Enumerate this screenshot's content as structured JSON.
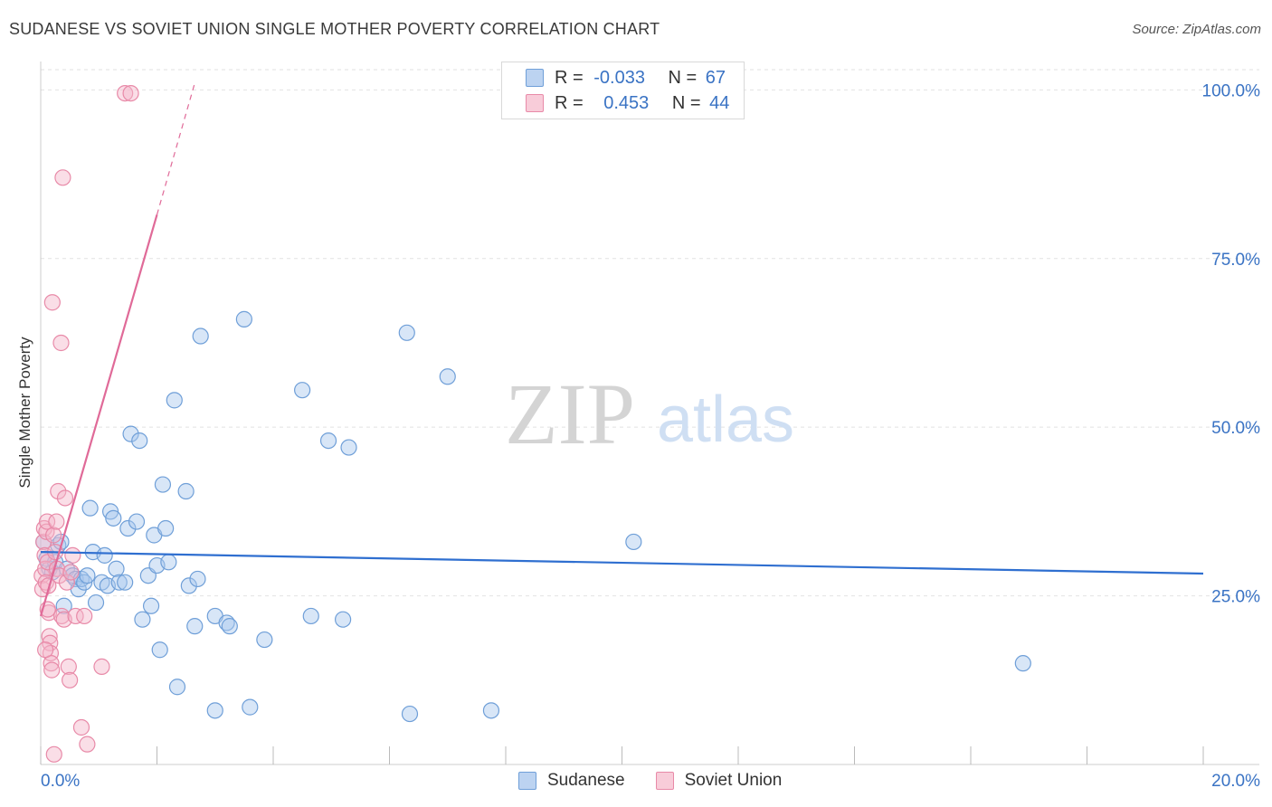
{
  "title": "SUDANESE VS SOVIET UNION SINGLE MOTHER POVERTY CORRELATION CHART",
  "source": "Source: ZipAtlas.com",
  "watermark": {
    "zip": "ZIP",
    "atlas": "atlas"
  },
  "legend": {
    "rows": [
      {
        "r_label": "R =",
        "r_value": "-0.033",
        "n_label": "N =",
        "n_value": "67"
      },
      {
        "r_label": "R =",
        "r_value": "0.453",
        "n_label": "N =",
        "n_value": "44"
      }
    ]
  },
  "bottom_legend": {
    "sudanese": "Sudanese",
    "soviet": "Soviet Union"
  },
  "colors": {
    "blue_fill": "#a9c8ee",
    "blue_stroke": "#6f9fd8",
    "blue_line": "#2f6fd0",
    "pink_fill": "#f4b6c9",
    "pink_stroke": "#e88aa8",
    "pink_line": "#e06a98",
    "axis_text": "#3a73c4"
  },
  "chart_data": {
    "type": "scatter",
    "title": "SUDANESE VS SOVIET UNION SINGLE MOTHER POVERTY CORRELATION CHART",
    "xlabel": "",
    "ylabel": "Single Mother Poverty",
    "xlim": [
      0,
      20
    ],
    "ylim": [
      0,
      103
    ],
    "x_tick_labels": [
      "0.0%",
      "20.0%"
    ],
    "y_ticks": [
      25,
      50,
      75,
      100
    ],
    "y_tick_labels": [
      "25.0%",
      "50.0%",
      "75.0%",
      "100.0%"
    ],
    "grid": true,
    "legend_position": "top-center",
    "series": [
      {
        "name": "Sudanese",
        "r": -0.033,
        "n": 67,
        "trend": {
          "x0": 0,
          "y0": 31.5,
          "x1": 20,
          "y1": 28.3
        },
        "points": [
          [
            0.05,
            33
          ],
          [
            0.1,
            30.5
          ],
          [
            0.15,
            29
          ],
          [
            0.2,
            28.5
          ],
          [
            0.25,
            30
          ],
          [
            0.3,
            32.5
          ],
          [
            0.35,
            33
          ],
          [
            0.4,
            23.5
          ],
          [
            0.45,
            29
          ],
          [
            0.55,
            28
          ],
          [
            0.6,
            27.5
          ],
          [
            0.65,
            26
          ],
          [
            0.7,
            27.5
          ],
          [
            0.75,
            27
          ],
          [
            0.8,
            28
          ],
          [
            0.85,
            38
          ],
          [
            0.9,
            31.5
          ],
          [
            0.95,
            24
          ],
          [
            1.05,
            27
          ],
          [
            1.1,
            31
          ],
          [
            1.15,
            26.5
          ],
          [
            1.2,
            37.5
          ],
          [
            1.25,
            36.5
          ],
          [
            1.3,
            29
          ],
          [
            1.35,
            27
          ],
          [
            1.45,
            27
          ],
          [
            1.5,
            35
          ],
          [
            1.55,
            49
          ],
          [
            1.65,
            36
          ],
          [
            1.7,
            48
          ],
          [
            1.75,
            21.5
          ],
          [
            1.85,
            28
          ],
          [
            1.9,
            23.5
          ],
          [
            1.95,
            34
          ],
          [
            2.0,
            29.5
          ],
          [
            2.05,
            17
          ],
          [
            2.1,
            41.5
          ],
          [
            2.15,
            35
          ],
          [
            2.2,
            30
          ],
          [
            2.3,
            54
          ],
          [
            2.35,
            11.5
          ],
          [
            2.5,
            40.5
          ],
          [
            2.55,
            26.5
          ],
          [
            2.65,
            20.5
          ],
          [
            2.7,
            27.5
          ],
          [
            2.75,
            63.5
          ],
          [
            3.0,
            8
          ],
          [
            3.0,
            22
          ],
          [
            3.2,
            21
          ],
          [
            3.25,
            20.5
          ],
          [
            3.5,
            66
          ],
          [
            3.6,
            8.5
          ],
          [
            3.85,
            18.5
          ],
          [
            4.5,
            55.5
          ],
          [
            4.65,
            22
          ],
          [
            4.95,
            48
          ],
          [
            5.2,
            21.5
          ],
          [
            5.3,
            47
          ],
          [
            6.3,
            64
          ],
          [
            6.35,
            7.5
          ],
          [
            7.0,
            57.5
          ],
          [
            7.75,
            8
          ],
          [
            10.2,
            33
          ],
          [
            16.9,
            15
          ]
        ]
      },
      {
        "name": "Soviet Union",
        "r": 0.453,
        "n": 44,
        "trend": {
          "x0": 0,
          "y0": 22,
          "x1": 2.0,
          "y1": 81.5
        },
        "trend_dashed": {
          "x0": 2.0,
          "y0": 81.5,
          "x1": 2.65,
          "y1": 101
        },
        "points": [
          [
            0.02,
            28
          ],
          [
            0.03,
            26
          ],
          [
            0.05,
            33
          ],
          [
            0.06,
            35
          ],
          [
            0.07,
            31
          ],
          [
            0.08,
            29
          ],
          [
            0.09,
            27
          ],
          [
            0.1,
            34.5
          ],
          [
            0.11,
            36
          ],
          [
            0.12,
            30
          ],
          [
            0.13,
            26.5
          ],
          [
            0.14,
            22.5
          ],
          [
            0.15,
            19
          ],
          [
            0.16,
            18
          ],
          [
            0.17,
            16.5
          ],
          [
            0.18,
            15
          ],
          [
            0.19,
            14
          ],
          [
            0.2,
            68.5
          ],
          [
            0.22,
            34
          ],
          [
            0.25,
            31.5
          ],
          [
            0.28,
            29
          ],
          [
            0.3,
            40.5
          ],
          [
            0.32,
            28
          ],
          [
            0.35,
            62.5
          ],
          [
            0.36,
            22
          ],
          [
            0.38,
            87
          ],
          [
            0.4,
            21.5
          ],
          [
            0.42,
            39.5
          ],
          [
            0.45,
            27
          ],
          [
            0.48,
            14.5
          ],
          [
            0.5,
            12.5
          ],
          [
            0.52,
            28.5
          ],
          [
            0.55,
            31
          ],
          [
            0.6,
            22
          ],
          [
            0.7,
            5.5
          ],
          [
            0.75,
            22
          ],
          [
            0.8,
            3
          ],
          [
            0.23,
            1.5
          ],
          [
            1.05,
            14.5
          ],
          [
            1.45,
            99.5
          ],
          [
            1.55,
            99.5
          ],
          [
            0.08,
            17
          ],
          [
            0.12,
            23
          ],
          [
            0.27,
            36
          ]
        ]
      }
    ]
  }
}
